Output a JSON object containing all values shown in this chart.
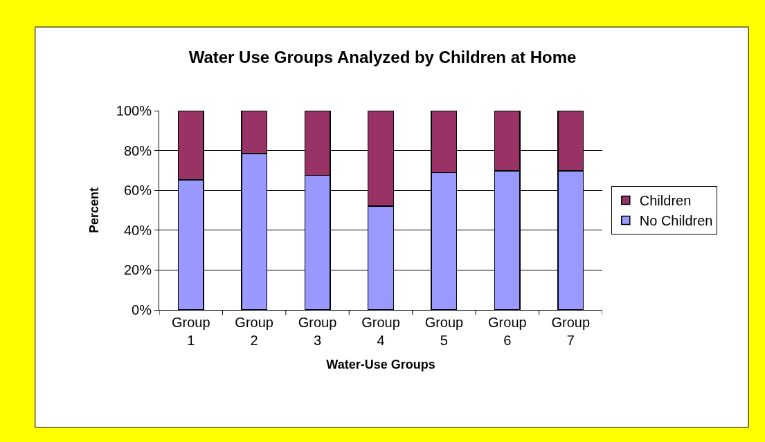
{
  "chart_data": {
    "type": "bar",
    "title": "Water Use Groups Analyzed by Children at Home",
    "xlabel": "Water-Use Groups",
    "ylabel": "Percent",
    "categories": [
      "Group 1",
      "Group 2",
      "Group 3",
      "Group 4",
      "Group 5",
      "Group 6",
      "Group 7"
    ],
    "stacked": true,
    "series": [
      {
        "name": "No Children",
        "color": "#9999ff",
        "values": [
          65.3,
          78.5,
          67.5,
          52.1,
          68.9,
          69.8,
          69.8
        ]
      },
      {
        "name": "Children",
        "color": "#993366",
        "values": [
          34.7,
          21.5,
          32.5,
          47.9,
          31.1,
          30.2,
          30.2
        ]
      }
    ],
    "ylim": [
      0,
      100
    ],
    "yticks": [
      {
        "value": 0,
        "label": "0%"
      },
      {
        "value": 20,
        "label": "20%"
      },
      {
        "value": 40,
        "label": "40%"
      },
      {
        "value": 60,
        "label": "60%"
      },
      {
        "value": 80,
        "label": "80%"
      },
      {
        "value": 100,
        "label": "100%"
      }
    ],
    "grid": "y",
    "legend": "right"
  }
}
